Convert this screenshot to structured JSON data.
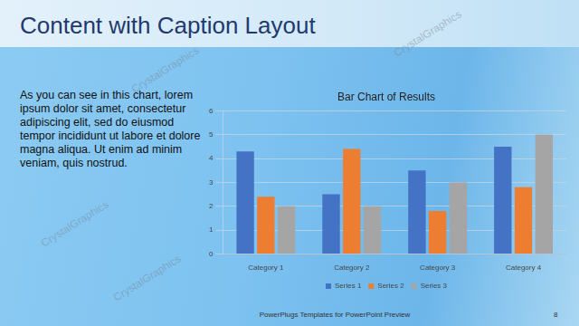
{
  "slide": {
    "title": "Content with Caption Layout",
    "caption": "As you can see in this chart, lorem ipsum dolor sit amet, consectetur adipiscing elit, sed do eiusmod tempor incididunt ut labore et dolore magna aliqua. Ut enim ad minim veniam, quis nostrud.",
    "footer": "PowerPlugs Templates for PowerPoint Preview",
    "page_number": 8,
    "watermark": "CrystalGraphics"
  },
  "chart_data": {
    "type": "bar",
    "title": "Bar Chart of Results",
    "categories": [
      "Category 1",
      "Category 2",
      "Category 3",
      "Category 4"
    ],
    "series": [
      {
        "name": "Series 1",
        "color": "#4472c4",
        "values": [
          4.3,
          2.5,
          3.5,
          4.5
        ]
      },
      {
        "name": "Series 2",
        "color": "#ed7d31",
        "values": [
          2.4,
          4.4,
          1.8,
          2.8
        ]
      },
      {
        "name": "Series 3",
        "color": "#a5a5a5",
        "values": [
          2.0,
          2.0,
          3.0,
          5.0
        ]
      }
    ],
    "ylim": [
      0,
      6
    ],
    "yticks": [
      0,
      1,
      2,
      3,
      4,
      5,
      6
    ],
    "grid": true,
    "legend": "bottom"
  }
}
